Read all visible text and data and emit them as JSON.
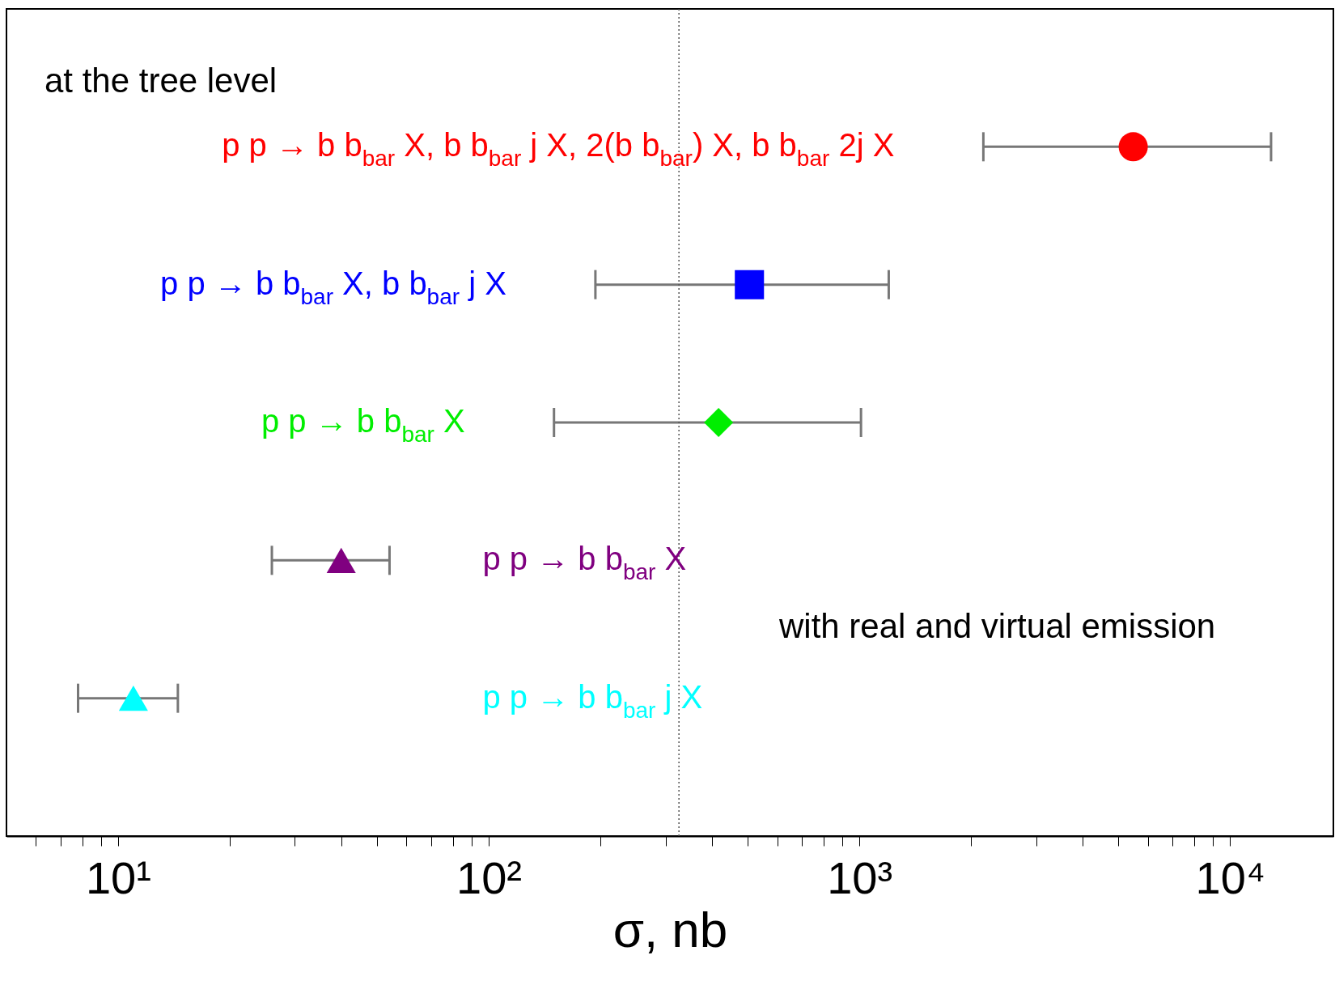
{
  "chart_data": {
    "type": "scatter",
    "orientation": "horizontal",
    "xlabel": "σ, nb",
    "log": "x",
    "grid": false,
    "tick_labels": "x",
    "categories": [
      null,
      null,
      null,
      null,
      null
    ],
    "xlim": [
      5,
      19000
    ],
    "xticks": [
      {
        "value": 6,
        "label": null
      },
      {
        "value": 7,
        "label": null
      },
      {
        "value": 8,
        "label": null
      },
      {
        "value": 9,
        "label": null
      },
      {
        "value": 10,
        "label": "10¹"
      },
      {
        "value": 20,
        "label": null
      },
      {
        "value": 30,
        "label": null
      },
      {
        "value": 40,
        "label": null
      },
      {
        "value": 50,
        "label": null
      },
      {
        "value": 60,
        "label": null
      },
      {
        "value": 70,
        "label": null
      },
      {
        "value": 80,
        "label": null
      },
      {
        "value": 90,
        "label": null
      },
      {
        "value": 100,
        "label": "10²"
      },
      {
        "value": 200,
        "label": null
      },
      {
        "value": 300,
        "label": null
      },
      {
        "value": 400,
        "label": null
      },
      {
        "value": 500,
        "label": null
      },
      {
        "value": 600,
        "label": null
      },
      {
        "value": 700,
        "label": null
      },
      {
        "value": 800,
        "label": null
      },
      {
        "value": 900,
        "label": null
      },
      {
        "value": 1000,
        "label": "10³"
      },
      {
        "value": 2000,
        "label": null
      },
      {
        "value": 3000,
        "label": null
      },
      {
        "value": 4000,
        "label": null
      },
      {
        "value": 5000,
        "label": null
      },
      {
        "value": 6000,
        "label": null
      },
      {
        "value": 7000,
        "label": null
      },
      {
        "value": 8000,
        "label": null
      },
      {
        "value": 9000,
        "label": null
      },
      {
        "value": 10000,
        "label": "10⁴"
      }
    ],
    "series": [
      {
        "name": "p p → b b$_{bar}$ X,   b b$_{bar}$ j X,   2(b b$_{bar}$) X,   b b$_{bar}$ 2j X",
        "color": "#ff0000",
        "marker": "circle",
        "values": [
          5480,
          null,
          null,
          null,
          null
        ],
        "errors": [
          [
            2160,
            12900
          ],
          null,
          null,
          null,
          null
        ]
      },
      {
        "name": "p p → b b$_{bar}$ X,   b b$_{bar}$ j X",
        "color": "#0000ff",
        "marker": "square",
        "values": [
          null,
          505,
          null,
          null,
          null
        ],
        "errors": [
          null,
          [
            194,
            1200
          ],
          null,
          null,
          null
        ]
      },
      {
        "name": "p p → b b$_{bar}$ X",
        "color": "#00ee00",
        "marker": "diamond",
        "values": [
          null,
          null,
          417,
          null,
          null
        ],
        "errors": [
          null,
          null,
          [
            150,
            1010
          ],
          null,
          null
        ]
      },
      {
        "name": "p p → b b$_{bar}$ X",
        "color": "#800080",
        "marker": "triangle",
        "values": [
          null,
          null,
          null,
          40,
          null
        ],
        "errors": [
          null,
          null,
          null,
          [
            26,
            54
          ],
          null
        ]
      },
      {
        "name": "p p → b b$_{bar}$ j X",
        "color": "#00ffff",
        "marker": "triangle",
        "values": [
          null,
          null,
          null,
          null,
          11
        ],
        "errors": [
          null,
          null,
          null,
          null,
          [
            7.8,
            14.5
          ]
        ]
      }
    ],
    "ref_lines": [
      {
        "axis": "x",
        "value": 326,
        "label": null,
        "color": "#555555",
        "line_style": "dotted"
      }
    ],
    "annotations": [
      "at the tree level",
      "with real and virtual emission"
    ]
  }
}
